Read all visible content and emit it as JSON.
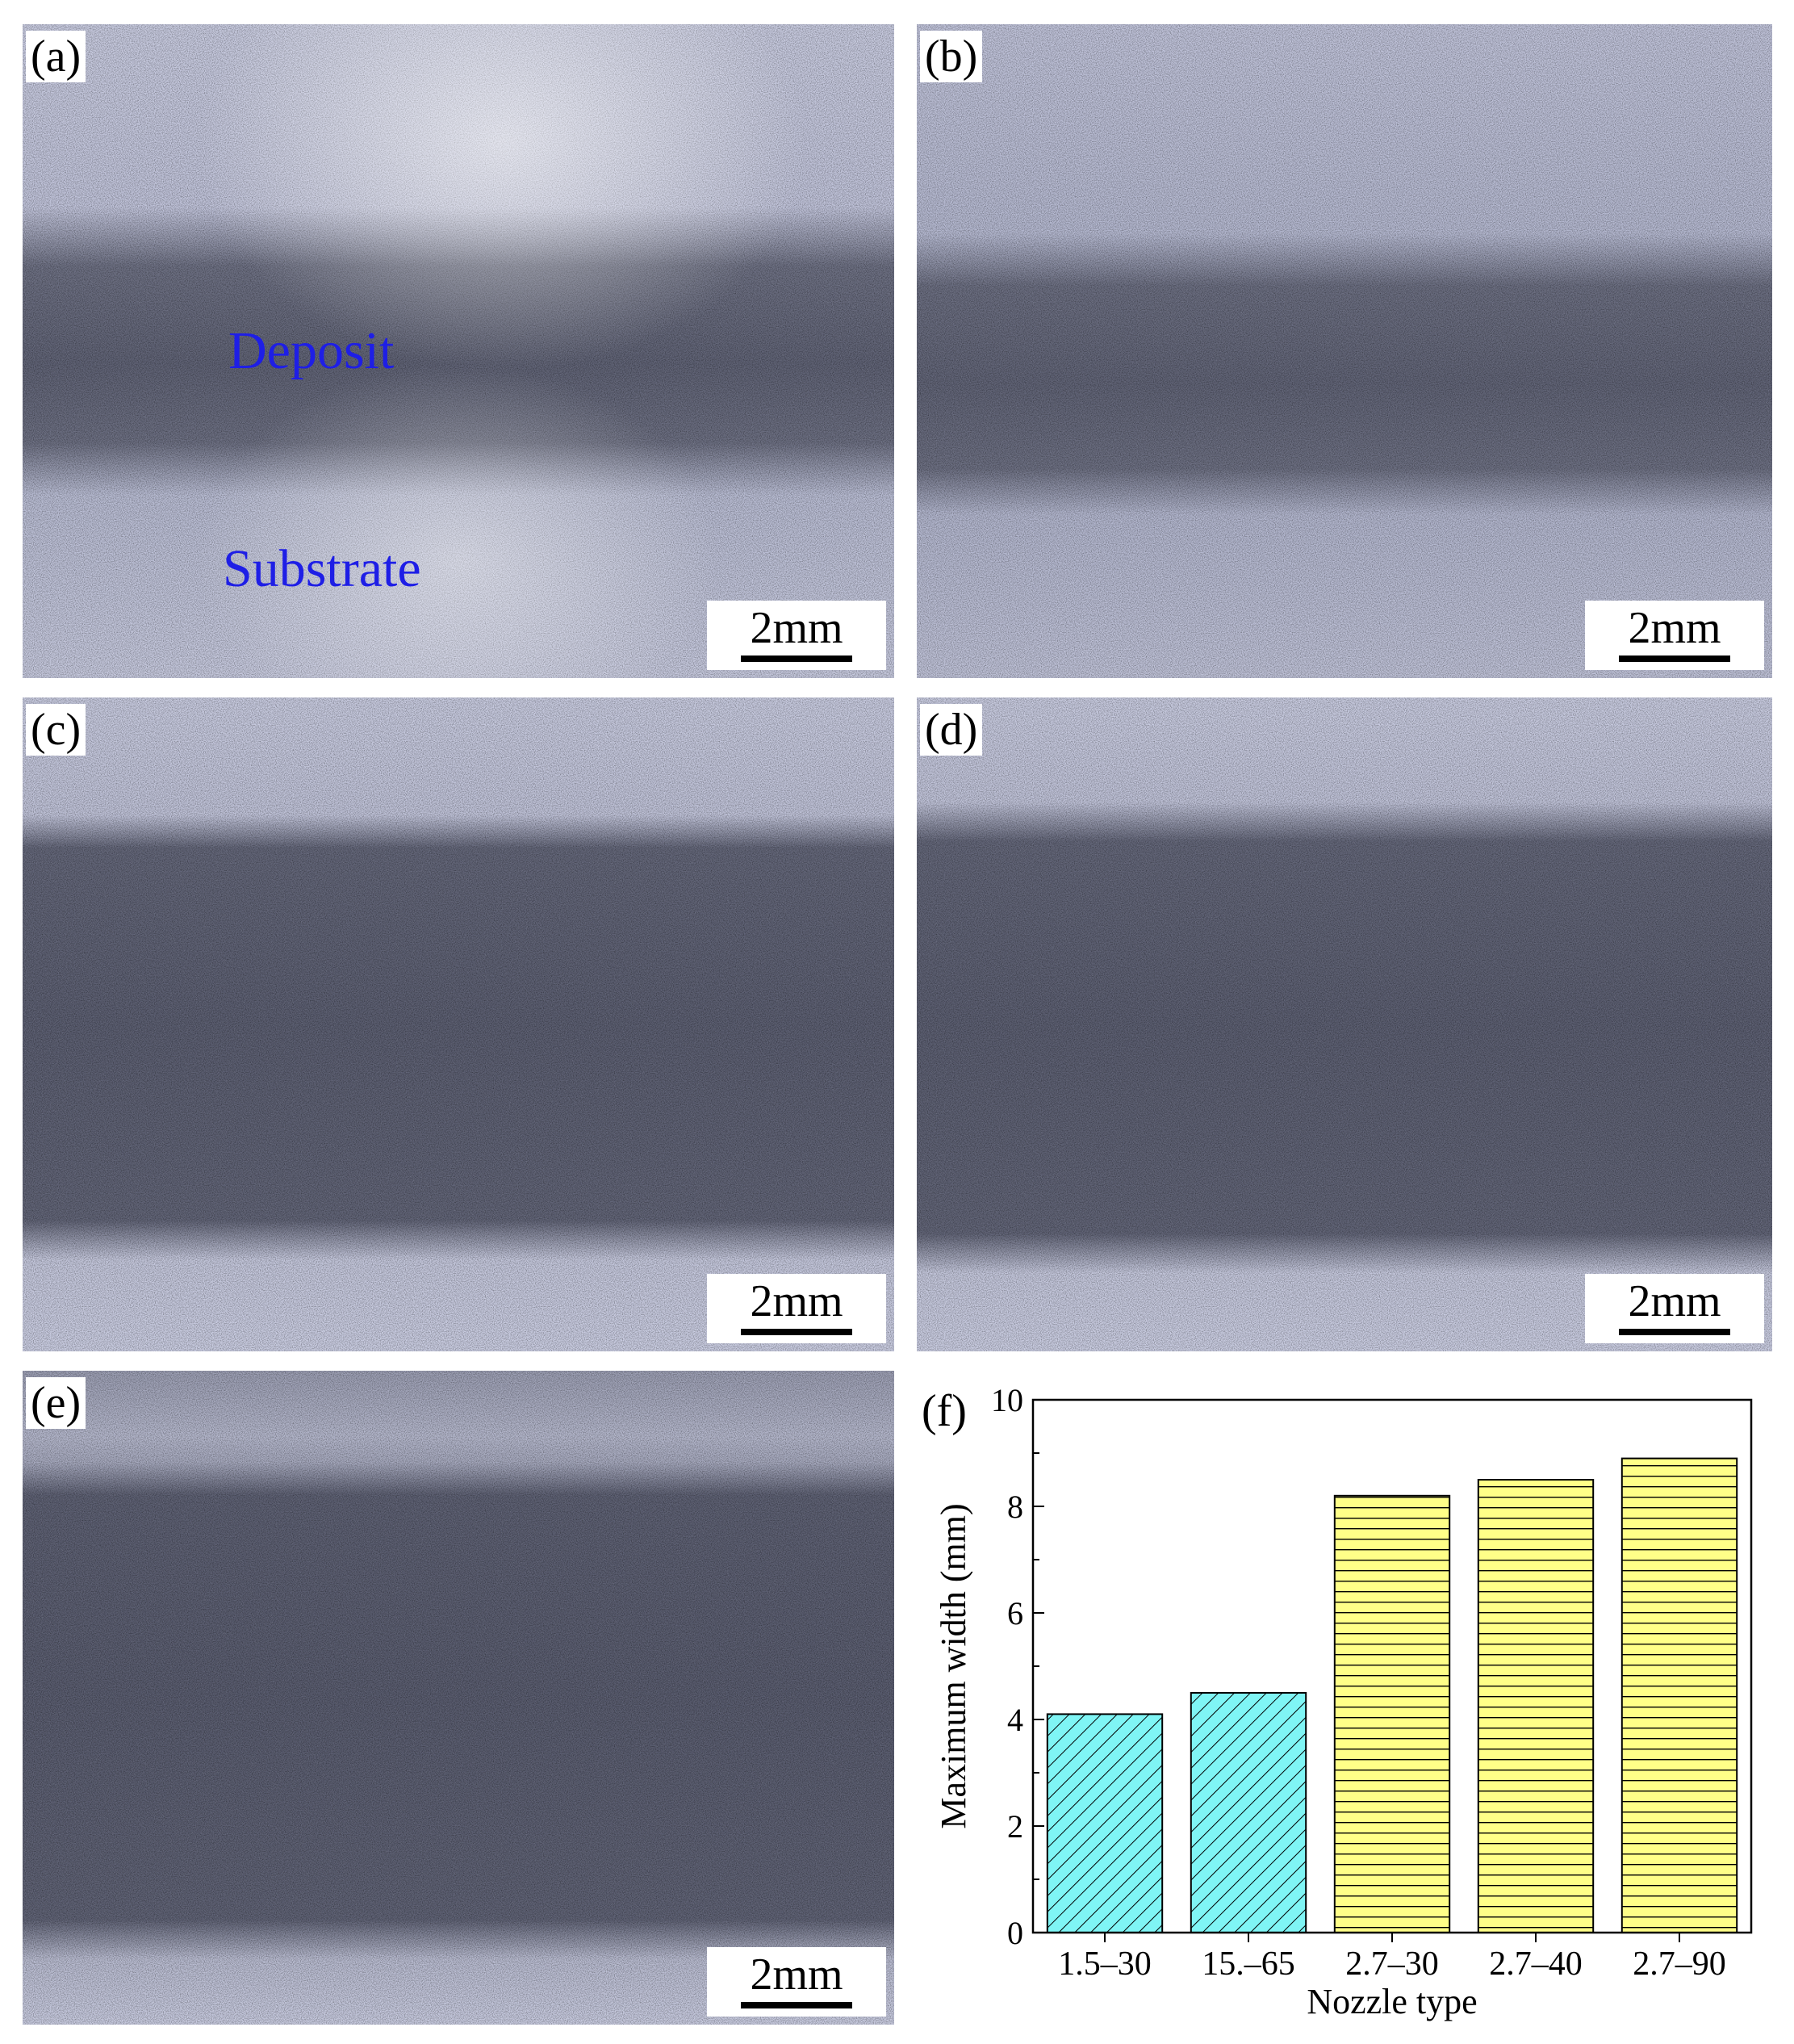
{
  "panels": [
    {
      "id": "a",
      "label": "(a)",
      "scale_bar": "2mm",
      "deposit_label": "Deposit",
      "substrate_label": "Substrate"
    },
    {
      "id": "b",
      "label": "(b)",
      "scale_bar": "2mm"
    },
    {
      "id": "c",
      "label": "(c)",
      "scale_bar": "2mm"
    },
    {
      "id": "d",
      "label": "(d)",
      "scale_bar": "2mm"
    },
    {
      "id": "e",
      "label": "(e)",
      "scale_bar": "2mm"
    }
  ],
  "chart_label": "(f)",
  "chart_data": {
    "type": "bar",
    "categories": [
      "1.5–30",
      "15.–65",
      "2.7–30",
      "2.7–40",
      "2.7–90"
    ],
    "values": [
      4.1,
      4.5,
      8.2,
      8.5,
      8.9
    ],
    "xlabel": "Nozzle type",
    "ylabel": "Maximum width (mm)",
    "ylim": [
      0,
      10
    ],
    "yticks": [
      0,
      2,
      4,
      6,
      8,
      10
    ],
    "grid": false,
    "bar_colors": [
      "#7ff5f5",
      "#7ff5f5",
      "#ffff88",
      "#ffff88",
      "#ffff88"
    ],
    "bar_patterns": [
      "diagonal",
      "diagonal",
      "horizontal",
      "horizontal",
      "horizontal"
    ]
  }
}
